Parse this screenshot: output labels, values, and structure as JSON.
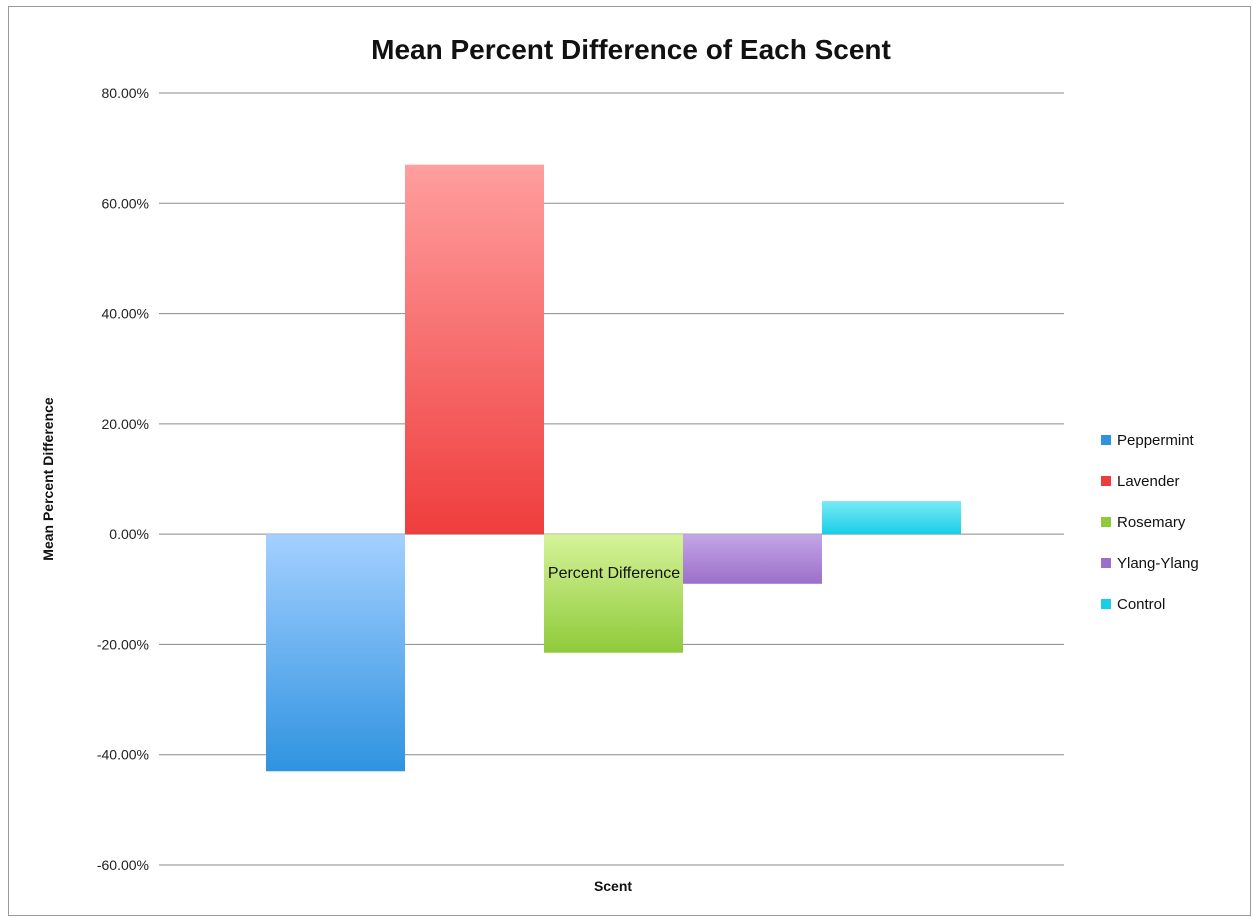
{
  "chart_data": {
    "type": "bar",
    "title": "Mean Percent Difference of Each Scent",
    "xlabel": "Scent",
    "ylabel": "Mean Percent Difference",
    "ylim": [
      -0.6,
      0.8
    ],
    "yticks": [
      0.8,
      0.6,
      0.4,
      0.2,
      0.0,
      -0.2,
      -0.4,
      -0.6
    ],
    "ytick_labels": [
      "80.00%",
      "60.00%",
      "40.00%",
      "20.00%",
      "0.00%",
      "-20.00%",
      "-40.00%",
      "-60.00%"
    ],
    "grid": true,
    "legend_position": "right",
    "series": [
      {
        "name": "Peppermint",
        "value": -0.43,
        "color_light": "#a4d0ff",
        "color_dark": "#2f93e0"
      },
      {
        "name": "Lavender",
        "value": 0.67,
        "color_light": "#ff9e9e",
        "color_dark": "#ef3d3d"
      },
      {
        "name": "Rosemary",
        "value": -0.215,
        "color_light": "#d6f39a",
        "color_dark": "#8fca3a"
      },
      {
        "name": "Ylang-Ylang",
        "value": -0.09,
        "color_light": "#c4a6e6",
        "color_dark": "#9b6fcb"
      },
      {
        "name": "Control",
        "value": 0.06,
        "color_light": "#7ae9f7",
        "color_dark": "#18cfe6"
      }
    ],
    "annotation": "Percent Difference"
  }
}
